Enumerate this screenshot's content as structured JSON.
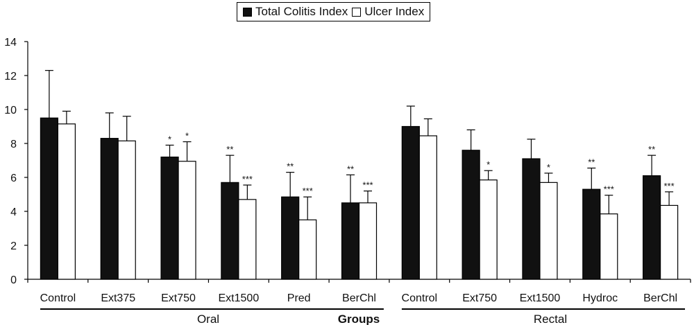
{
  "chart_data": {
    "type": "bar",
    "xlabel": "Groups",
    "ylabel": "",
    "ylim": [
      0,
      14
    ],
    "yticks": [
      0,
      2,
      4,
      6,
      8,
      10,
      12,
      14
    ],
    "grid": false,
    "legend_position": "top-center",
    "categories": [
      "Control",
      "Ext375",
      "Ext750",
      "Ext1500",
      "Pred",
      "BerChl",
      "Control",
      "Ext750",
      "Ext1500",
      "Hydroc",
      "BerChl"
    ],
    "groups": [
      {
        "label": "Oral",
        "categories": [
          "Control",
          "Ext375",
          "Ext750",
          "Ext1500",
          "Pred",
          "BerChl"
        ]
      },
      {
        "label": "Rectal",
        "categories": [
          "Control",
          "Ext750",
          "Ext1500",
          "Hydroc",
          "BerChl"
        ]
      }
    ],
    "series": [
      {
        "name": "Total Colitis Index",
        "color": "#111111",
        "values": [
          9.5,
          8.3,
          7.2,
          5.7,
          4.85,
          4.5,
          9.0,
          7.6,
          7.1,
          5.3,
          6.1
        ],
        "errors": [
          2.8,
          1.5,
          0.7,
          1.6,
          1.45,
          1.65,
          1.2,
          1.2,
          1.15,
          1.25,
          1.2
        ],
        "significance": [
          "",
          "",
          "*",
          "**",
          "**",
          "**",
          "",
          "",
          "",
          "**",
          "**"
        ]
      },
      {
        "name": "Ulcer Index",
        "color": "#ffffff",
        "values": [
          9.15,
          8.15,
          6.95,
          4.7,
          3.5,
          4.5,
          8.45,
          5.85,
          5.7,
          3.85,
          4.35
        ],
        "errors": [
          0.75,
          1.45,
          1.15,
          0.85,
          1.35,
          0.7,
          1.0,
          0.55,
          0.55,
          1.1,
          0.8
        ],
        "significance": [
          "",
          "",
          "*",
          "***",
          "***",
          "***",
          "",
          "*",
          "*",
          "***",
          "***"
        ]
      }
    ]
  }
}
